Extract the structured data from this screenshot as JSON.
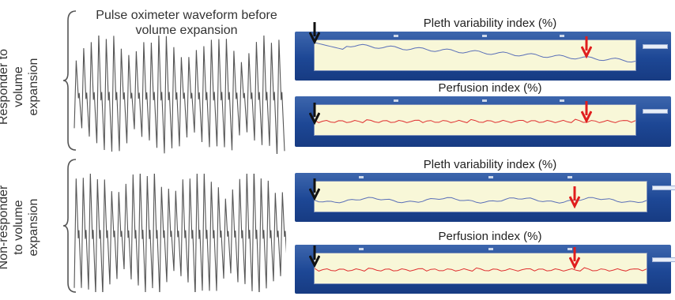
{
  "wave_title": "Pulse oximeter waveform before\nvolume expansion",
  "rows": [
    {
      "label": "Responder to\nvolume\nexpansion",
      "panels": [
        {
          "title": "Pleth variability index (%)",
          "trace_color": "#5a6fb8",
          "black_arrow_frac": 0.02,
          "red_arrow_frac": 0.86
        },
        {
          "title": "Perfusion index (%)",
          "trace_color": "#e03030",
          "black_arrow_frac": 0.02,
          "red_arrow_frac": 0.86
        }
      ]
    },
    {
      "label": "Non-responder\nto volume\nexpansion",
      "panels": [
        {
          "title": "Pleth variability index (%)",
          "trace_color": "#5a6fb8",
          "black_arrow_frac": 0.02,
          "red_arrow_frac": 0.8
        },
        {
          "title": "Perfusion index (%)",
          "trace_color": "#e03030",
          "black_arrow_frac": 0.02,
          "red_arrow_frac": 0.8
        }
      ]
    }
  ],
  "colors": {
    "waveform": "#555555",
    "black_arrow": "#111111",
    "red_arrow": "#e01d1d",
    "screen": "#1d4795",
    "plot_bg": "#f8f7d8"
  }
}
